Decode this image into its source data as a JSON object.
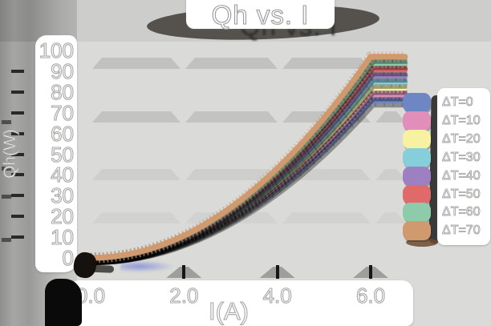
{
  "title": "Qh vs. I",
  "axes": {
    "x_label": "I(A)",
    "y_label": "Qh(W)",
    "x_tick_labels": [
      "0.0",
      "2.0",
      "4.0",
      "6.0"
    ],
    "y_tick_labels": [
      "100",
      "90",
      "80",
      "70",
      "60",
      "50",
      "40",
      "30",
      "20",
      "10",
      "0"
    ]
  },
  "legend": {
    "position": "right",
    "entries": [
      {
        "label": "ΔT=0",
        "color": "#6e86c3"
      },
      {
        "label": "ΔT=10",
        "color": "#e18eba"
      },
      {
        "label": "ΔT=20",
        "color": "#f6f2a2"
      },
      {
        "label": "ΔT=30",
        "color": "#85cfdb"
      },
      {
        "label": "ΔT=40",
        "color": "#9c80c2"
      },
      {
        "label": "ΔT=50",
        "color": "#e06969"
      },
      {
        "label": "ΔT=60",
        "color": "#8ecbaa"
      },
      {
        "label": "ΔT=70",
        "color": "#d1996e"
      }
    ]
  },
  "colors": {
    "background": "#dadad8",
    "text_panel": "#ffffff",
    "grid_band": "#c1c1bf",
    "left_margin": "#9a9a98",
    "shadow": "#141414"
  },
  "chart_data": {
    "type": "line",
    "title": "Qh vs. I",
    "xlabel": "I(A)",
    "ylabel": "Qh(W)",
    "xlim": [
      0,
      6.7
    ],
    "ylim": [
      0,
      100
    ],
    "x_ticks": [
      0.0,
      2.0,
      4.0,
      6.0
    ],
    "y_ticks": [
      0,
      10,
      20,
      30,
      40,
      50,
      60,
      70,
      80,
      90,
      100
    ],
    "grid": "horizontal-bands",
    "legend_position": "right",
    "x": [
      0,
      1,
      2,
      3,
      4,
      5,
      6
    ],
    "series": [
      {
        "name": "ΔT=0",
        "values": [
          0,
          2.1,
          8.4,
          19.0,
          33.8,
          52.8,
          76
        ]
      },
      {
        "name": "ΔT=10",
        "values": [
          0,
          2.2,
          8.8,
          19.8,
          35.1,
          54.9,
          79
        ]
      },
      {
        "name": "ΔT=20",
        "values": [
          0,
          2.3,
          9.1,
          20.5,
          36.4,
          56.9,
          82
        ]
      },
      {
        "name": "ΔT=30",
        "values": [
          0,
          2.4,
          9.4,
          21.3,
          37.8,
          59.0,
          85
        ]
      },
      {
        "name": "ΔT=40",
        "values": [
          0,
          2.4,
          9.8,
          22.0,
          39.1,
          61.1,
          88
        ]
      },
      {
        "name": "ΔT=50",
        "values": [
          0,
          2.5,
          10.1,
          22.8,
          40.4,
          63.2,
          91
        ]
      },
      {
        "name": "ΔT=60",
        "values": [
          0,
          2.6,
          10.4,
          23.5,
          41.8,
          65.3,
          94
        ]
      },
      {
        "name": "ΔT=70",
        "values": [
          0,
          2.7,
          10.8,
          24.3,
          43.1,
          67.4,
          97
        ]
      }
    ]
  }
}
